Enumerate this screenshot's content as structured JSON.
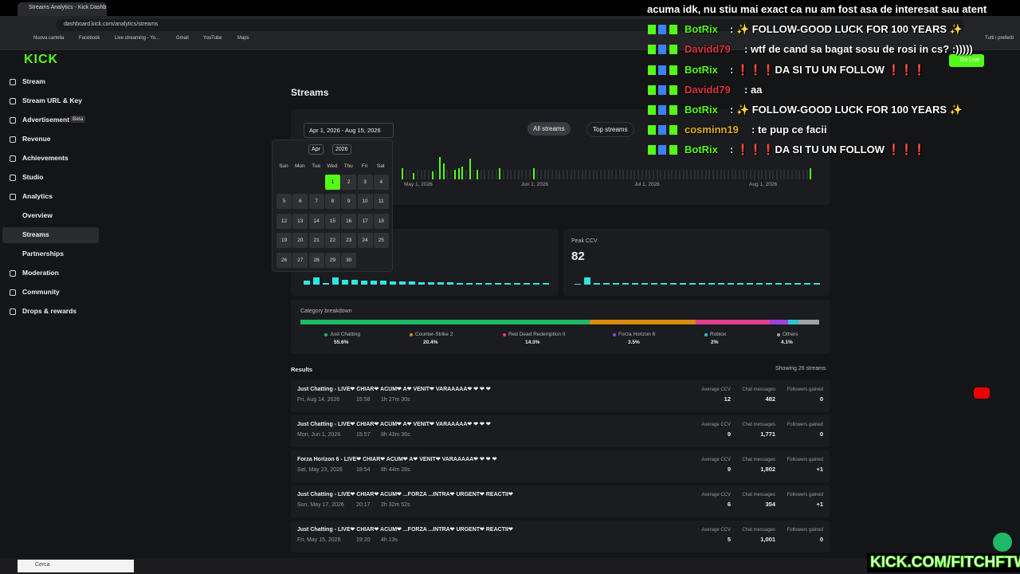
{
  "browser": {
    "tab_title": "Streams Analytics - Kick Dashb",
    "url": "dashboard.kick.com/analytics/streams",
    "bookmarks": [
      "Nuova cartella",
      "Facebook",
      "Live streaming - Yo...",
      "Gmail",
      "YouTube",
      "Maps"
    ],
    "all_bookmarks": "Tutti i preferiti"
  },
  "sidebar": {
    "logo": "KICK",
    "items": [
      {
        "label": "Stream"
      },
      {
        "label": "Stream URL & Key"
      },
      {
        "label": "Advertisement",
        "badge": "Beta"
      },
      {
        "label": "Revenue"
      },
      {
        "label": "Achievements"
      },
      {
        "label": "Studio"
      },
      {
        "label": "Analytics"
      },
      {
        "label": "Overview"
      },
      {
        "label": "Streams"
      },
      {
        "label": "Partnerships"
      },
      {
        "label": "Moderation"
      },
      {
        "label": "Community"
      },
      {
        "label": "Drops & rewards"
      }
    ]
  },
  "go_live": "Go Live",
  "page": {
    "title": "Streams",
    "date_range": "Apr 1, 2026 - Aug 15, 2026",
    "tabs": [
      "All streams",
      "Top streams"
    ]
  },
  "timeline": {
    "values": [
      14,
      0,
      0,
      8,
      0,
      0,
      0,
      0,
      10,
      0,
      28,
      20,
      0,
      0,
      12,
      14,
      16,
      0,
      26,
      0,
      12,
      0,
      0,
      0,
      0,
      0,
      14,
      0,
      0,
      0,
      0,
      0,
      0,
      0,
      0,
      14,
      0,
      0,
      0,
      0,
      0,
      0,
      0,
      0,
      0,
      0,
      0,
      0,
      0,
      0,
      0,
      0,
      0,
      0,
      0,
      0,
      0,
      0,
      0,
      0,
      0,
      0,
      0,
      0,
      0,
      0,
      0,
      0,
      0,
      0,
      0,
      0,
      0,
      0,
      0,
      0,
      0,
      0,
      0,
      0,
      0,
      0,
      0,
      0,
      0,
      0,
      0,
      0,
      0,
      0,
      0,
      0,
      0,
      0,
      0,
      0,
      0,
      0,
      0,
      0,
      0,
      0,
      0,
      0,
      0,
      0,
      0,
      0,
      0,
      14
    ],
    "x_labels": [
      "May 1, 2026",
      "Jun 1, 2026",
      "Jul 1, 2026",
      "Aug 1, 2026"
    ]
  },
  "calendar": {
    "month": "Apr",
    "year": "2026",
    "weekdays": [
      "Sun",
      "Mon",
      "Tue",
      "Wed",
      "Thu",
      "Fri",
      "Sat"
    ],
    "days": [
      1,
      2,
      3,
      4,
      5,
      6,
      7,
      8,
      9,
      10,
      11,
      12,
      13,
      14,
      15,
      16,
      17,
      18,
      19,
      20,
      21,
      22,
      23,
      24,
      25,
      26,
      27,
      28,
      29,
      30
    ]
  },
  "left_card": {
    "spark": [
      5,
      9,
      2,
      9,
      6,
      6,
      5,
      5,
      5,
      4,
      4,
      4,
      3,
      3,
      3,
      3,
      2,
      2,
      2,
      2,
      2,
      2,
      2,
      2,
      2,
      2
    ]
  },
  "peak_ccv": {
    "label": "Peak CCV",
    "value": 82,
    "spark": [
      1,
      9,
      2,
      2,
      2,
      2,
      2,
      2,
      2,
      2,
      2,
      2,
      2,
      2,
      2,
      2,
      2,
      2,
      2,
      2,
      2,
      2,
      2,
      2,
      2,
      2
    ]
  },
  "categories": {
    "title": "Category breakdown",
    "items": [
      {
        "name": "Just Chatting",
        "value": 55.6,
        "label": "55.6%",
        "color": "#1fb866"
      },
      {
        "name": "Counter-Strike 2",
        "value": 20.4,
        "label": "20.4%",
        "color": "#d98a0f"
      },
      {
        "name": "Red Dead Redemption II",
        "value": 14.3,
        "label": "14.3%",
        "color": "#e23f8f"
      },
      {
        "name": "Forza Horizon 6",
        "value": 3.5,
        "label": "3.5%",
        "color": "#a040e0"
      },
      {
        "name": "Roblox",
        "value": 2,
        "label": "2%",
        "color": "#2cc6cf"
      },
      {
        "name": "Others",
        "value": 4.1,
        "label": "4.1%",
        "color": "#a1a1a6"
      }
    ]
  },
  "results": {
    "title": "Results",
    "count": "Showing 26 streams",
    "columns": [
      "Average CCV",
      "Chat messages",
      "Followers gained"
    ],
    "rows": [
      {
        "title": "Just Chatting - LIVE❤ CHIAR❤ ACUM❤ A❤ VENIT❤ VARAAAAA❤ ❤ ❤ ❤",
        "date": "Fri, Aug 14, 2026",
        "time": "15:58",
        "duration": "1h 27m 30s",
        "cells": [
          "12",
          "482",
          "0"
        ]
      },
      {
        "title": "Just Chatting - LIVE❤ CHIAR❤ ACUM❤ A❤ VENIT❤ VARAAAAA❤ ❤ ❤ ❤",
        "date": "Mon, Jun 1, 2026",
        "time": "15:57",
        "duration": "8h 43m 36s",
        "cells": [
          "9",
          "1,771",
          "0"
        ]
      },
      {
        "title": "Forza Horizon 6 - LIVE❤ CHIAR❤ ACUM❤ A❤ VENIT❤ VARAAAAA❤ ❤ ❤ ❤",
        "date": "Sat, May 23, 2026",
        "time": "18:54",
        "duration": "8h 44m 28s",
        "cells": [
          "9",
          "1,802",
          "+1"
        ]
      },
      {
        "title": "Just Chatting - LIVE❤ CHIAR❤ ACUM❤ ...FORZA ...INTRA❤ URGENT❤ REACTII❤",
        "date": "Sun, May 17, 2026",
        "time": "20:17",
        "duration": "2h 32m 52s",
        "cells": [
          "6",
          "354",
          "+1"
        ]
      },
      {
        "title": "Just Chatting - LIVE❤ CHIAR❤ ACUM❤ ...FORZA ...INTRA❤ URGENT❤ REACTII❤",
        "date": "Fri, May 15, 2026",
        "time": "19:20",
        "duration": "4h 13s",
        "cells": [
          "5",
          "1,001",
          "0"
        ]
      }
    ]
  },
  "chat": {
    "lines": [
      {
        "text": "acuma idk, nu stiu mai exact ca nu am fost asa de interesat sau atent"
      },
      {
        "user": "BotRix",
        "color": "#53fc18",
        "text": ": ✨ FOLLOW-GOOD LUCK FOR 100 YEARS ✨"
      },
      {
        "user": "Davidd79",
        "color": "#d9363e",
        "text": ": wtf de cand sa bagat sosu de rosi in cs? :)))))"
      },
      {
        "user": "BotRix",
        "color": "#53fc18",
        "text": ": ❗❗❗DA SI TU UN FOLLOW ❗❗❗"
      },
      {
        "user": "Davidd79",
        "color": "#d9363e",
        "text": ": aa"
      },
      {
        "user": "BotRix",
        "color": "#53fc18",
        "text": ": ✨ FOLLOW-GOOD LUCK FOR 100 YEARS ✨"
      },
      {
        "user": "cosminn19",
        "color": "#e0b020",
        "text": ": te pup ce facii"
      },
      {
        "user": "BotRix",
        "color": "#53fc18",
        "text": ": ❗❗❗DA SI TU UN FOLLOW ❗❗❗"
      }
    ]
  },
  "overlay": {
    "brand": "KICK.COM/FITCHFTW"
  },
  "taskbar": {
    "search": "Cerca"
  }
}
